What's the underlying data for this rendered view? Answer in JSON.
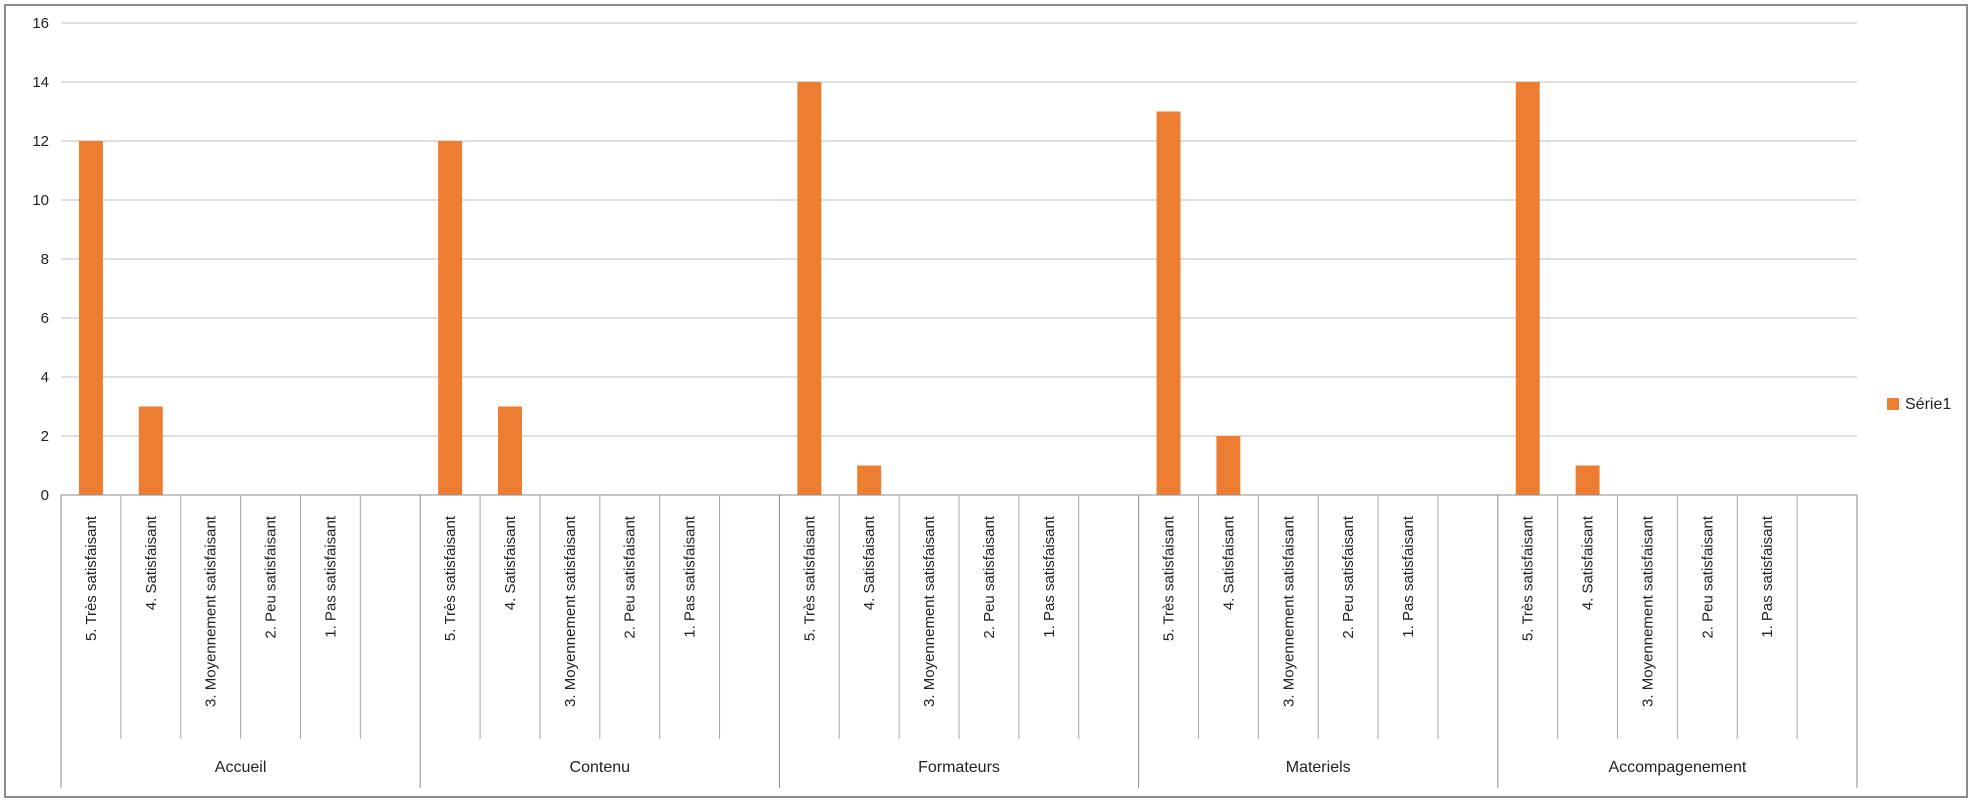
{
  "chart_data": {
    "type": "bar",
    "title": "",
    "xlabel": "",
    "ylabel": "",
    "ylim": [
      0,
      16
    ],
    "yticks": [
      0,
      2,
      4,
      6,
      8,
      10,
      12,
      14,
      16
    ],
    "grid": true,
    "legend_position": "right",
    "bar_color": "#ED7D31",
    "gridline_color": "#BFBFBF",
    "categories": [
      "5. Très satisfaisant",
      "4. Satisfaisant",
      "3. Moyennement satisfaisant",
      "2. Peu satisfaisant",
      "1. Pas satisfaisant"
    ],
    "groups": [
      {
        "label": "Accueil",
        "values": [
          12,
          3,
          0,
          0,
          0
        ]
      },
      {
        "label": "Contenu",
        "values": [
          12,
          3,
          0,
          0,
          0
        ]
      },
      {
        "label": "Formateurs",
        "values": [
          14,
          1,
          0,
          0,
          0
        ]
      },
      {
        "label": "Materiels",
        "values": [
          13,
          2,
          0,
          0,
          0
        ]
      },
      {
        "label": "Accompagenement",
        "values": [
          14,
          1,
          0,
          0,
          0
        ]
      }
    ],
    "series": [
      {
        "name": "Série1"
      }
    ]
  }
}
